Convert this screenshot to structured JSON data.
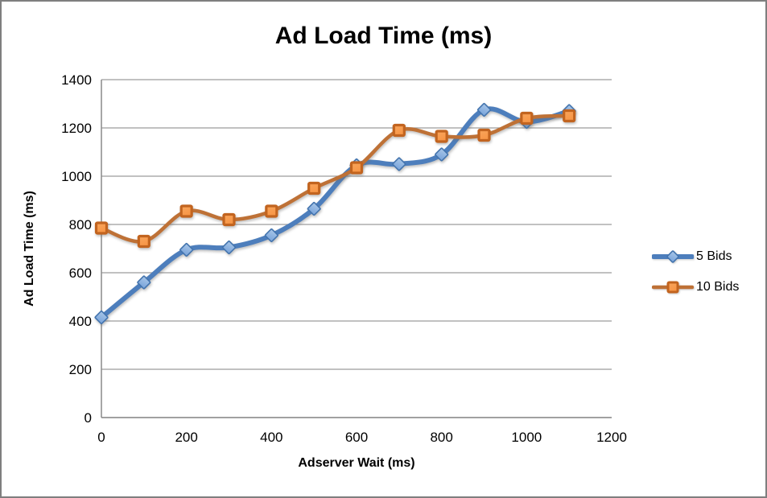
{
  "chart_data": {
    "type": "line",
    "title": "Ad Load Time (ms)",
    "xlabel": "Adserver Wait (ms)",
    "ylabel": "Ad Load Time (ms)",
    "x": [
      0,
      100,
      200,
      300,
      400,
      500,
      600,
      700,
      800,
      900,
      1000,
      1100
    ],
    "series": [
      {
        "name": "5 Bids",
        "marker": "diamond",
        "values": [
          415,
          560,
          695,
          705,
          755,
          865,
          1045,
          1050,
          1090,
          1275,
          1225,
          1270
        ],
        "line_color": "#4D7EBC",
        "line_width": 6,
        "marker_fill": "#7FA8DC",
        "marker_fill_light": "#A9C7E8",
        "marker_stroke": "#4374AE"
      },
      {
        "name": "10 Bids",
        "marker": "square",
        "values": [
          785,
          730,
          855,
          820,
          855,
          950,
          1035,
          1190,
          1165,
          1170,
          1240,
          1250
        ],
        "line_color": "#BE7136",
        "line_width": 4.5,
        "marker_fill": "#F79646",
        "marker_fill_light": "#F9A55C",
        "marker_stroke": "#C2641F"
      }
    ],
    "xlim": [
      0,
      1200
    ],
    "ylim": [
      0,
      1400
    ],
    "xticks": [
      0,
      200,
      400,
      600,
      800,
      1000,
      1200
    ],
    "yticks": [
      0,
      200,
      400,
      600,
      800,
      1000,
      1200,
      1400
    ],
    "grid": true,
    "grid_color": "#9C9C9C",
    "axis_color": "#8A8A8A",
    "tick_font_size": 17,
    "legend_position": "right",
    "smoothed": true
  }
}
